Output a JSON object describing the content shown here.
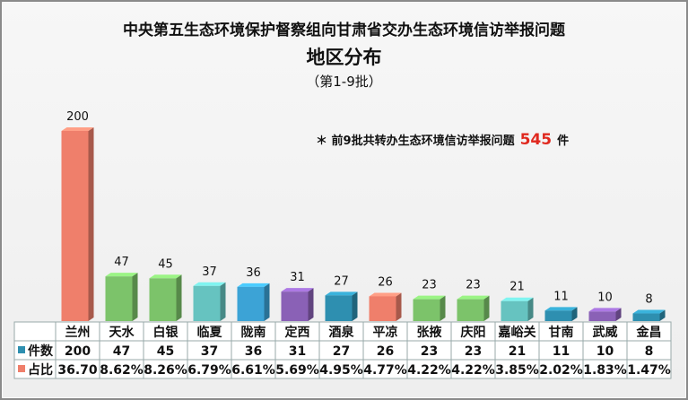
{
  "title": "中央第五生态环境保护督察组向甘肃省交办生态环境信访举报问题",
  "subtitle": "地区分布",
  "period": "（第1-9批）",
  "note": {
    "prefix": "＊ 前9批共转办生态环境信访举报问题",
    "total": "545",
    "suffix": "件"
  },
  "chart_data": {
    "type": "bar",
    "categories": [
      "兰州",
      "天水",
      "白银",
      "临夏",
      "陇南",
      "定西",
      "酒泉",
      "平凉",
      "张掖",
      "庆阳",
      "嘉峪关",
      "甘南",
      "武威",
      "金昌"
    ],
    "series": [
      {
        "name": "件数",
        "values": [
          200,
          47,
          45,
          37,
          36,
          31,
          27,
          26,
          23,
          23,
          21,
          11,
          10,
          8
        ]
      },
      {
        "name": "占比",
        "values": [
          "36.70",
          "8.62%",
          "8.26%",
          "6.79%",
          "6.61%",
          "5.69%",
          "4.95%",
          "4.77%",
          "4.22%",
          "4.22%",
          "3.85%",
          "2.02%",
          "1.83%",
          "1.47%"
        ]
      }
    ],
    "colors": [
      "#ef7f6b",
      "#7cc36a",
      "#7cc36a",
      "#66c3c0",
      "#3ca3d6",
      "#8a61b6",
      "#2e8fb0",
      "#ef7f6b",
      "#7cc36a",
      "#7cc36a",
      "#66c3c0",
      "#2e8fb0",
      "#8a61b6",
      "#2e8fb0"
    ],
    "legend_colors": {
      "件数": "#2e8fb0",
      "占比": "#ef7f6b"
    },
    "ylim": [
      0,
      200
    ]
  }
}
